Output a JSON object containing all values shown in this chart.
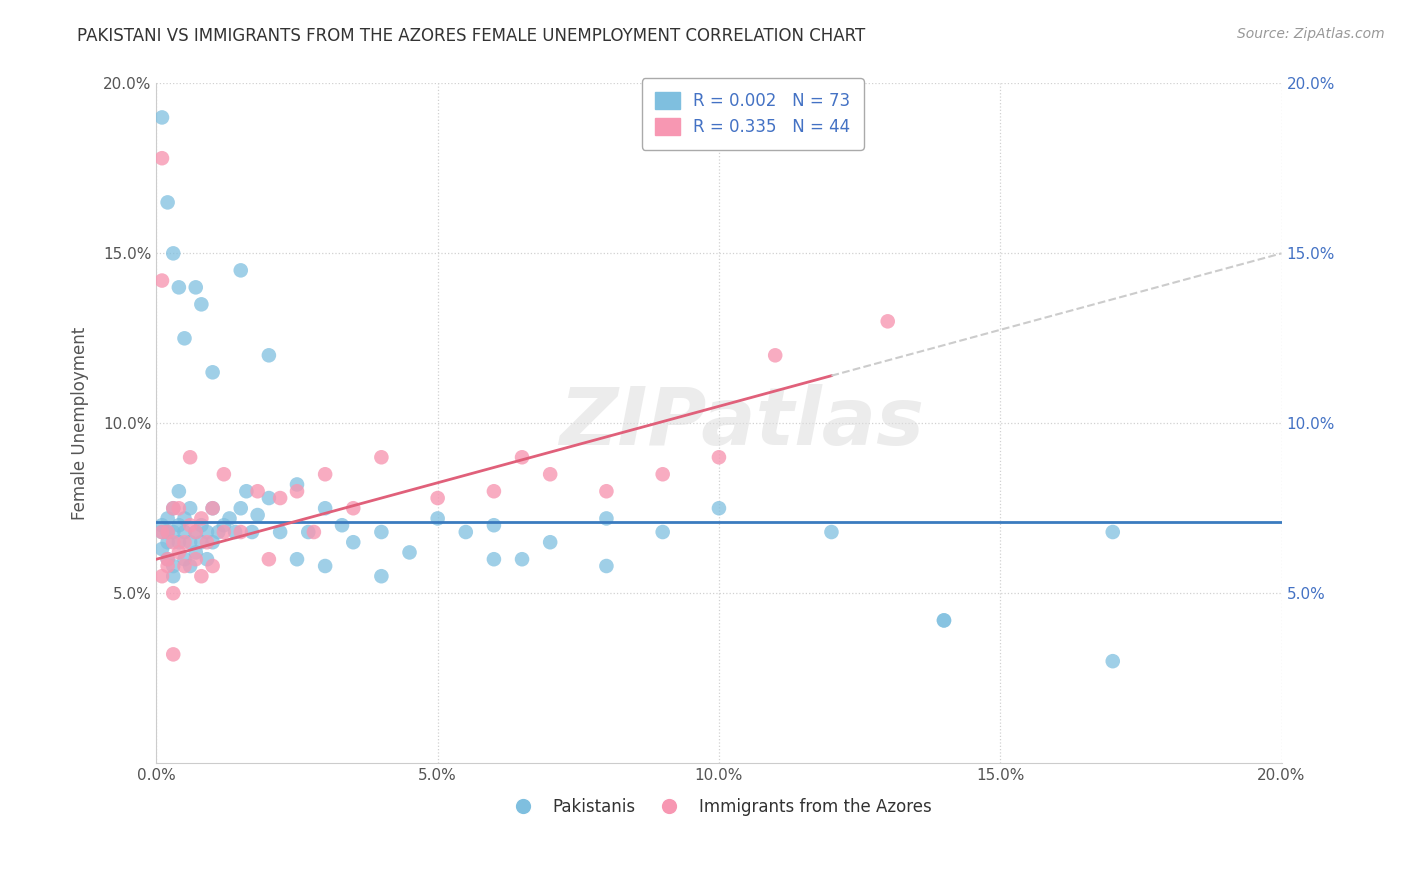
{
  "title": "PAKISTANI VS IMMIGRANTS FROM THE AZORES FEMALE UNEMPLOYMENT CORRELATION CHART",
  "source": "Source: ZipAtlas.com",
  "ylabel": "Female Unemployment",
  "legend_label1": "Pakistanis",
  "legend_label2": "Immigrants from the Azores",
  "r1": "0.002",
  "n1": "73",
  "r2": "0.335",
  "n2": "44",
  "xmin": 0.0,
  "xmax": 0.2,
  "ymin": 0.0,
  "ymax": 0.2,
  "color_blue": "#7fbfdf",
  "color_pink": "#f797b2",
  "color_blue_line": "#3a7bbf",
  "color_pink_line": "#e0607a",
  "watermark": "ZIPatlas",
  "blue_x": [
    0.001,
    0.001,
    0.001,
    0.002,
    0.002,
    0.002,
    0.002,
    0.003,
    0.003,
    0.003,
    0.003,
    0.004,
    0.004,
    0.004,
    0.005,
    0.005,
    0.005,
    0.006,
    0.006,
    0.006,
    0.007,
    0.007,
    0.008,
    0.008,
    0.009,
    0.009,
    0.01,
    0.01,
    0.011,
    0.012,
    0.013,
    0.014,
    0.015,
    0.016,
    0.017,
    0.018,
    0.02,
    0.022,
    0.025,
    0.027,
    0.03,
    0.033,
    0.035,
    0.04,
    0.045,
    0.05,
    0.055,
    0.06,
    0.065,
    0.07,
    0.08,
    0.09,
    0.1,
    0.12,
    0.14,
    0.17,
    0.001,
    0.002,
    0.003,
    0.004,
    0.005,
    0.007,
    0.008,
    0.01,
    0.015,
    0.02,
    0.025,
    0.03,
    0.04,
    0.06,
    0.08,
    0.14,
    0.17
  ],
  "blue_y": [
    0.068,
    0.063,
    0.07,
    0.068,
    0.065,
    0.072,
    0.06,
    0.068,
    0.058,
    0.055,
    0.075,
    0.07,
    0.065,
    0.08,
    0.068,
    0.072,
    0.06,
    0.065,
    0.075,
    0.058,
    0.068,
    0.062,
    0.07,
    0.065,
    0.068,
    0.06,
    0.075,
    0.065,
    0.068,
    0.07,
    0.072,
    0.068,
    0.075,
    0.08,
    0.068,
    0.073,
    0.078,
    0.068,
    0.082,
    0.068,
    0.075,
    0.07,
    0.065,
    0.068,
    0.062,
    0.072,
    0.068,
    0.07,
    0.06,
    0.065,
    0.072,
    0.068,
    0.075,
    0.068,
    0.042,
    0.068,
    0.19,
    0.165,
    0.15,
    0.14,
    0.125,
    0.14,
    0.135,
    0.115,
    0.145,
    0.12,
    0.06,
    0.058,
    0.055,
    0.06,
    0.058,
    0.042,
    0.03
  ],
  "pink_x": [
    0.001,
    0.001,
    0.001,
    0.002,
    0.002,
    0.002,
    0.003,
    0.003,
    0.003,
    0.004,
    0.004,
    0.005,
    0.005,
    0.006,
    0.006,
    0.007,
    0.007,
    0.008,
    0.008,
    0.009,
    0.01,
    0.01,
    0.012,
    0.012,
    0.015,
    0.018,
    0.02,
    0.022,
    0.025,
    0.028,
    0.03,
    0.035,
    0.04,
    0.05,
    0.06,
    0.065,
    0.07,
    0.08,
    0.09,
    0.1,
    0.11,
    0.13,
    0.001,
    0.003
  ],
  "pink_y": [
    0.068,
    0.142,
    0.055,
    0.068,
    0.06,
    0.058,
    0.075,
    0.065,
    0.05,
    0.075,
    0.062,
    0.065,
    0.058,
    0.07,
    0.09,
    0.068,
    0.06,
    0.072,
    0.055,
    0.065,
    0.075,
    0.058,
    0.085,
    0.068,
    0.068,
    0.08,
    0.06,
    0.078,
    0.08,
    0.068,
    0.085,
    0.075,
    0.09,
    0.078,
    0.08,
    0.09,
    0.085,
    0.08,
    0.085,
    0.09,
    0.12,
    0.13,
    0.178,
    0.032
  ],
  "blue_line_y0": 0.071,
  "blue_line_y1": 0.071,
  "pink_line_y0": 0.06,
  "pink_line_y1": 0.15
}
